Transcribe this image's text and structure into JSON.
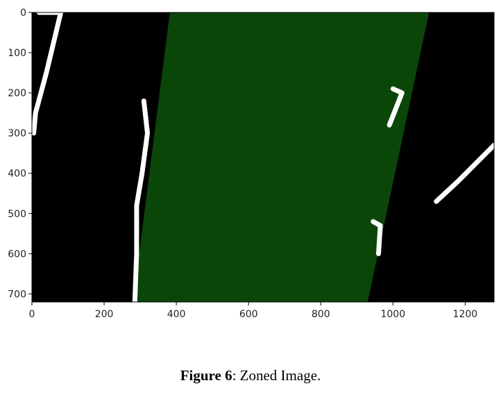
{
  "figure": {
    "label": "Figure 6",
    "caption_text": ": Zoned Image."
  },
  "colors": {
    "background": "#000000",
    "lane_zone": "#0a4608",
    "lane_pixels": "#ffffff"
  },
  "chart_data": {
    "type": "image",
    "xlim": [
      0,
      1280
    ],
    "ylim": [
      720,
      0
    ],
    "xticks": [
      0,
      200,
      400,
      600,
      800,
      1000,
      1200
    ],
    "yticks": [
      0,
      100,
      200,
      300,
      400,
      500,
      600,
      700
    ],
    "lane_zone": {
      "top_left_x": 382,
      "top_right_x": 1100,
      "bottom_left_x": 280,
      "bottom_right_x": 930
    },
    "lane_markings": [
      {
        "name": "left-lane-line",
        "points": [
          [
            310,
            220
          ],
          [
            320,
            300
          ],
          [
            305,
            400
          ],
          [
            290,
            480
          ],
          [
            290,
            600
          ],
          [
            285,
            720
          ]
        ]
      },
      {
        "name": "far-left-marking",
        "points": [
          [
            20,
            0
          ],
          [
            80,
            0
          ],
          [
            40,
            150
          ],
          [
            10,
            250
          ],
          [
            5,
            300
          ]
        ]
      },
      {
        "name": "right-dash-upper",
        "points": [
          [
            1000,
            190
          ],
          [
            1025,
            200
          ],
          [
            990,
            280
          ]
        ]
      },
      {
        "name": "right-dash-lower",
        "points": [
          [
            945,
            520
          ],
          [
            965,
            530
          ],
          [
            960,
            600
          ]
        ]
      },
      {
        "name": "right-edge-marking",
        "points": [
          [
            1280,
            330
          ],
          [
            1180,
            420
          ],
          [
            1120,
            470
          ]
        ]
      }
    ]
  }
}
